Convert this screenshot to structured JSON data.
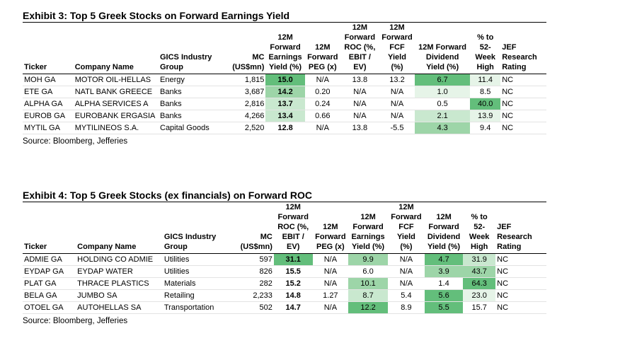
{
  "exhibit3": {
    "title": "Exhibit 3: Top 5 Greek Stocks on Forward Earnings Yield",
    "headers": [
      "Ticker",
      "Company Name",
      "GICS Industry Group",
      "MC (US$mn)",
      "12M Forward Earnings Yield (%)",
      "12M Forward PEG (x)",
      "12M Forward ROC (%, EBIT / EV)",
      "12M Forward FCF Yield (%)",
      "12M Forward Dividend Yield (%)",
      "% to 52-Week High",
      "JEF Research Rating"
    ],
    "header_lines": [
      [
        "Ticker"
      ],
      [
        "Company Name"
      ],
      [
        "GICS Industry Group"
      ],
      [
        "MC",
        "(US$mn)"
      ],
      [
        "12M",
        "Forward",
        "Earnings",
        "Yield (%)"
      ],
      [
        "12M",
        "Forward",
        "PEG (x)"
      ],
      [
        "12M",
        "Forward",
        "ROC (%,",
        "EBIT / EV)"
      ],
      [
        "12M",
        "Forward",
        "FCF Yield",
        "(%)"
      ],
      [
        "12M Forward",
        "Dividend Yield (%)"
      ],
      [
        "% to 52-",
        "Week",
        "High"
      ],
      [
        "JEF Research",
        "Rating"
      ]
    ],
    "rows": [
      [
        "MOH GA",
        "MOTOR OIL-HELLAS",
        "Energy",
        "1,815",
        "15.0",
        "N/A",
        "13.8",
        "13.2",
        "6.7",
        "11.4",
        "NC"
      ],
      [
        "ETE GA",
        "NATL BANK GREECE",
        "Banks",
        "3,687",
        "14.2",
        "0.20",
        "N/A",
        "N/A",
        "1.0",
        "8.5",
        "NC"
      ],
      [
        "ALPHA GA",
        "ALPHA SERVICES A",
        "Banks",
        "2,816",
        "13.7",
        "0.24",
        "N/A",
        "N/A",
        "0.5",
        "40.0",
        "NC"
      ],
      [
        "EUROB GA",
        "EUROBANK ERGASIA",
        "Banks",
        "4,266",
        "13.4",
        "0.66",
        "N/A",
        "N/A",
        "2.1",
        "13.9",
        "NC"
      ],
      [
        "MYTIL GA",
        "MYTILINEOS S.A.",
        "Capital Goods",
        "2,520",
        "12.8",
        "N/A",
        "13.8",
        "-5.5",
        "4.3",
        "9.4",
        "NC"
      ]
    ],
    "source": "Source: Bloomberg, Jefferies"
  },
  "exhibit4": {
    "title": "Exhibit 4: Top 5 Greek Stocks (ex financials) on Forward ROC",
    "headers": [
      "Ticker",
      "Company Name",
      "GICS Industry Group",
      "MC (US$mn)",
      "12M Forward ROC (%, EBIT / EV)",
      "12M Forward PEG (x)",
      "12M Forward Earnings Yield (%)",
      "12M Forward FCF Yield (%)",
      "12M Forward Dividend Yield (%)",
      "% to 52-Week High",
      "JEF Research Rating"
    ],
    "header_lines": [
      [
        "Ticker"
      ],
      [
        "Company Name"
      ],
      [
        "GICS Industry Group"
      ],
      [
        "MC",
        "(US$mn)"
      ],
      [
        "12M",
        "Forward",
        "ROC (%,",
        "EBIT / EV)"
      ],
      [
        "12M",
        "Forward",
        "PEG (x)"
      ],
      [
        "12M",
        "Forward",
        "Earnings",
        "Yield (%)"
      ],
      [
        "12M",
        "Forward",
        "FCF Yield",
        "(%)"
      ],
      [
        "12M",
        "Forward",
        "Dividend",
        "Yield (%)"
      ],
      [
        "% to 52-",
        "Week",
        "High"
      ],
      [
        "JEF Research",
        "Rating"
      ]
    ],
    "rows": [
      [
        "ADMIE GA",
        "HOLDING CO ADMIE",
        "Utilities",
        "597",
        "31.1",
        "N/A",
        "9.9",
        "N/A",
        "4.7",
        "31.9",
        "NC"
      ],
      [
        "EYDAP GA",
        "EYDAP WATER",
        "Utilities",
        "826",
        "15.5",
        "N/A",
        "6.0",
        "N/A",
        "3.9",
        "43.7",
        "NC"
      ],
      [
        "PLAT GA",
        "THRACE PLASTICS",
        "Materials",
        "282",
        "15.2",
        "N/A",
        "10.1",
        "N/A",
        "1.4",
        "64.3",
        "NC"
      ],
      [
        "BELA GA",
        "JUMBO SA",
        "Retailing",
        "2,233",
        "14.8",
        "1.27",
        "8.7",
        "5.4",
        "5.6",
        "23.0",
        "NC"
      ],
      [
        "OTOEL GA",
        "AUTOHELLAS SA",
        "Transportation",
        "502",
        "14.7",
        "N/A",
        "12.2",
        "8.9",
        "5.5",
        "15.7",
        "NC"
      ]
    ],
    "source": "Source: Bloomberg, Jefferies"
  },
  "colors": {
    "heat_strong": "#63be7b",
    "heat_mid": "#9dd5a8",
    "heat_light": "#c9e8cf",
    "heat_faint": "#e6f4e8",
    "text": "#000000"
  }
}
